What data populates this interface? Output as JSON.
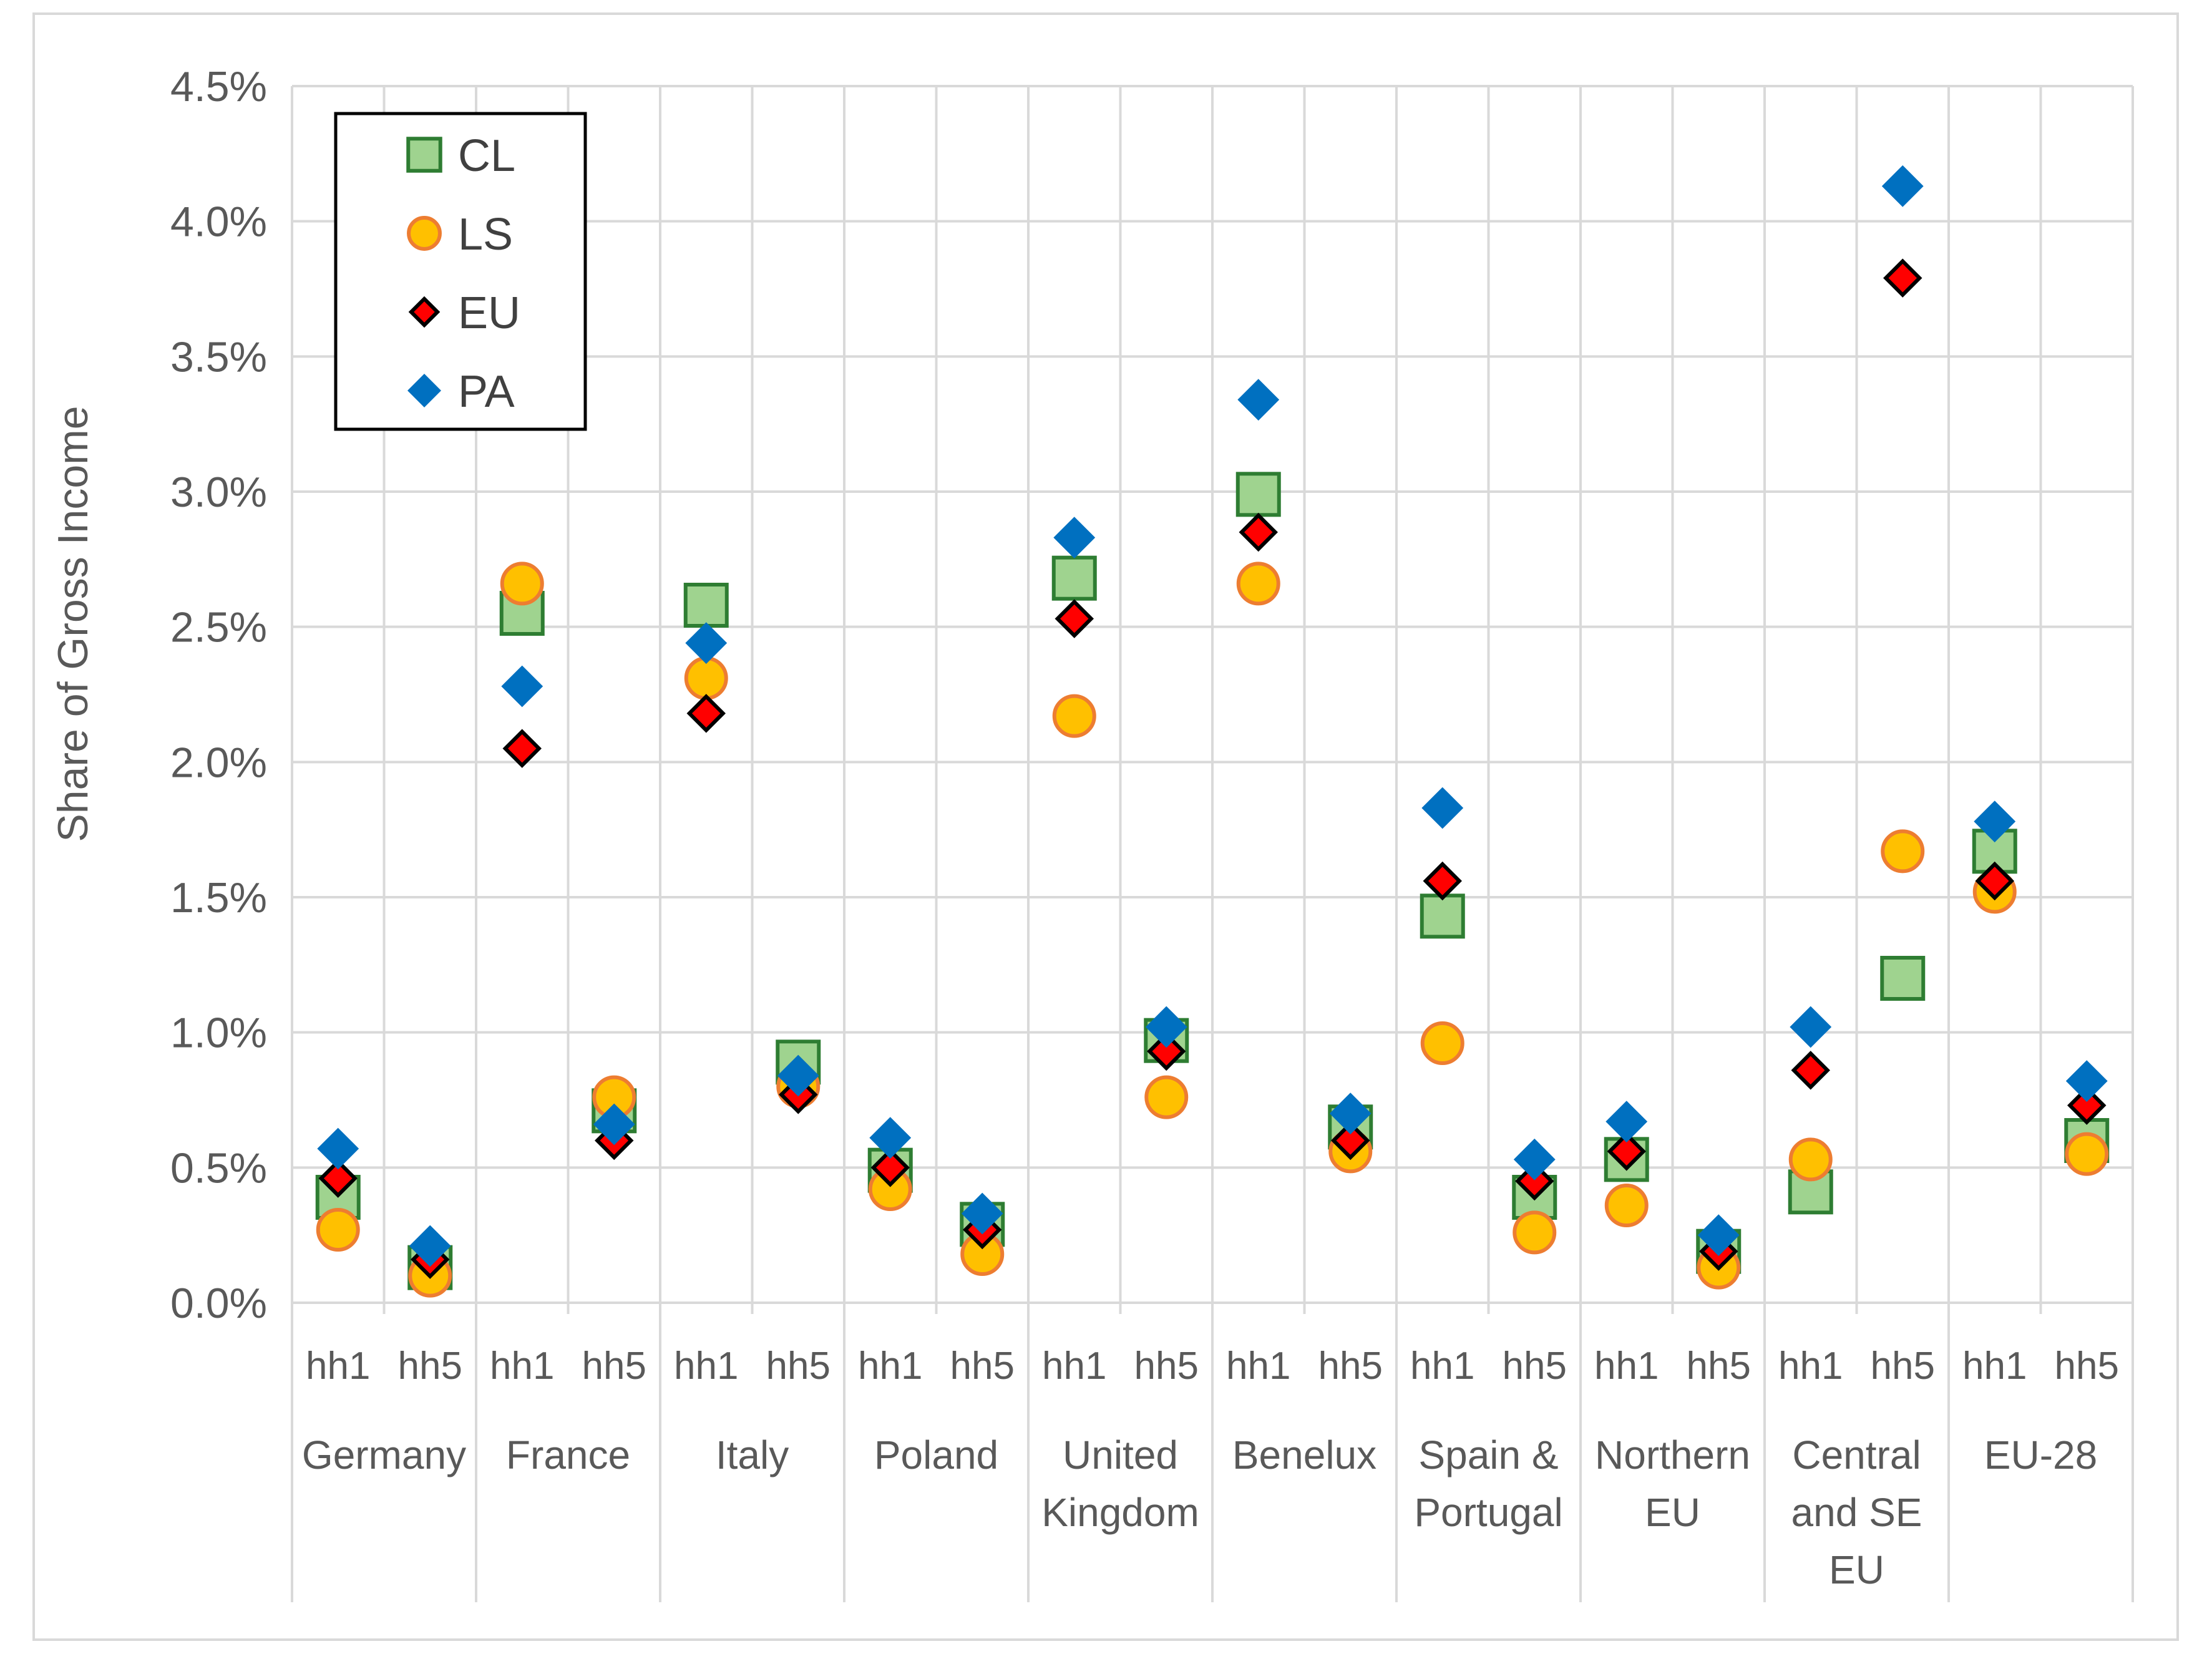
{
  "chart_data": {
    "type": "scatter",
    "title": "",
    "xlabel": "",
    "ylabel": "Share of Gross Income",
    "ylim": [
      0,
      0.045
    ],
    "y_ticks": [
      "0.0%",
      "0.5%",
      "1.0%",
      "1.5%",
      "2.0%",
      "2.5%",
      "3.0%",
      "3.5%",
      "4.0%",
      "4.5%"
    ],
    "grid": true,
    "legend_position": "top-left",
    "groups": [
      {
        "label": [
          "Germany"
        ],
        "categories": [
          "hh1",
          "hh5"
        ]
      },
      {
        "label": [
          "France"
        ],
        "categories": [
          "hh1",
          "hh5"
        ]
      },
      {
        "label": [
          "Italy"
        ],
        "categories": [
          "hh1",
          "hh5"
        ]
      },
      {
        "label": [
          "Poland"
        ],
        "categories": [
          "hh1",
          "hh5"
        ]
      },
      {
        "label": [
          "United",
          "Kingdom"
        ],
        "categories": [
          "hh1",
          "hh5"
        ]
      },
      {
        "label": [
          "Benelux"
        ],
        "categories": [
          "hh1",
          "hh5"
        ]
      },
      {
        "label": [
          "Spain &",
          "Portugal"
        ],
        "categories": [
          "hh1",
          "hh5"
        ]
      },
      {
        "label": [
          "Northern",
          "EU"
        ],
        "categories": [
          "hh1",
          "hh5"
        ]
      },
      {
        "label": [
          "Central",
          "and SE",
          "EU"
        ],
        "categories": [
          "hh1",
          "hh5"
        ]
      },
      {
        "label": [
          "EU-28"
        ],
        "categories": [
          "hh1",
          "hh5"
        ]
      }
    ],
    "series": [
      {
        "name": "CL",
        "marker": "square",
        "fill": "#9fd38f",
        "stroke": "#2e7d32",
        "values": [
          0.0039,
          0.0013,
          0.0255,
          0.0071,
          0.0258,
          0.0089,
          0.0049,
          0.0029,
          0.0268,
          0.0097,
          0.0299,
          0.0065,
          0.0143,
          0.0039,
          0.0053,
          0.0019,
          0.0041,
          0.012,
          0.0167,
          0.006
        ]
      },
      {
        "name": "LS",
        "marker": "circle",
        "fill": "#ffc000",
        "stroke": "#ed7d31",
        "values": [
          0.0027,
          0.001,
          0.0266,
          0.0076,
          0.0231,
          0.008,
          0.0042,
          0.0018,
          0.0217,
          0.0076,
          0.0266,
          0.0056,
          0.0096,
          0.0026,
          0.0036,
          0.0013,
          0.0053,
          0.0167,
          0.0152,
          0.0055
        ]
      },
      {
        "name": "EU",
        "marker": "diamond",
        "fill": "#ff0000",
        "stroke": "#000000",
        "values": [
          0.0046,
          0.0016,
          0.0205,
          0.006,
          0.0218,
          0.0077,
          0.005,
          0.0027,
          0.0253,
          0.0093,
          0.0285,
          0.006,
          0.0156,
          0.0045,
          0.0056,
          0.0019,
          0.0086,
          0.0379,
          0.0156,
          0.0073
        ]
      },
      {
        "name": "PA",
        "marker": "diamond",
        "fill": "#0070c0",
        "stroke": "#0070c0",
        "values": [
          0.0057,
          0.0021,
          0.0228,
          0.0066,
          0.0244,
          0.0084,
          0.0061,
          0.0033,
          0.0283,
          0.0102,
          0.0334,
          0.007,
          0.0183,
          0.0053,
          0.0067,
          0.0025,
          0.0102,
          0.0413,
          0.0178,
          0.0082
        ]
      }
    ]
  }
}
